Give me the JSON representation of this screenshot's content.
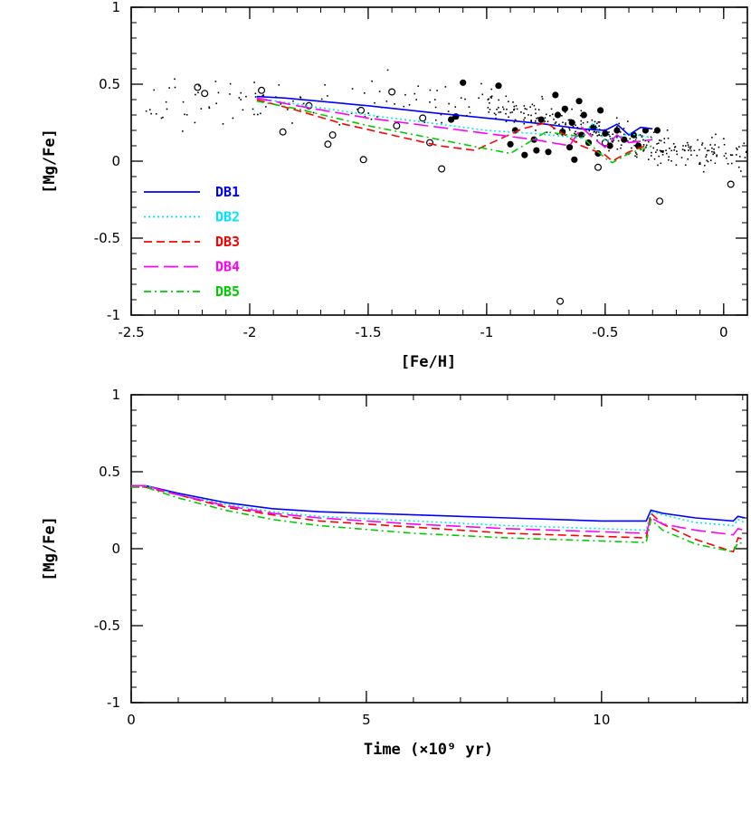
{
  "chart_data": [
    {
      "type": "scatter",
      "xlabel": "[Fe/H]",
      "ylabel": "[Mg/Fe]",
      "xlim": [
        -2.5,
        0.1
      ],
      "ylim": [
        -1,
        1
      ],
      "xticks": [
        {
          "value": -2.5,
          "label": "-2.5"
        },
        {
          "value": -2,
          "label": "-2"
        },
        {
          "value": -1.5,
          "label": "-1.5"
        },
        {
          "value": -1,
          "label": "-1"
        },
        {
          "value": -0.5,
          "label": "-0.5"
        },
        {
          "value": 0,
          "label": "0"
        }
      ],
      "yticks": [
        {
          "value": -1,
          "label": "-1"
        },
        {
          "value": -0.5,
          "label": "-0.5"
        },
        {
          "value": 0,
          "label": "0"
        },
        {
          "value": 0.5,
          "label": "0.5"
        },
        {
          "value": 1,
          "label": "1"
        }
      ],
      "legend": {
        "placement": "lower-left"
      },
      "series": [
        {
          "name": "DB1",
          "color": "#0000ff",
          "dash": "solid",
          "x": [
            -1.97,
            -1.85,
            -1.5,
            -1.2,
            -1.0,
            -0.75,
            -0.6,
            -0.5,
            -0.45,
            -0.4,
            -0.35,
            -0.3
          ],
          "y": [
            0.42,
            0.41,
            0.36,
            0.31,
            0.28,
            0.24,
            0.21,
            0.2,
            0.24,
            0.17,
            0.22,
            0.21
          ]
        },
        {
          "name": "DB2",
          "color": "#00e5ff",
          "dash": "dotted",
          "x": [
            -1.97,
            -1.8,
            -1.5,
            -1.2,
            -1.0,
            -0.8,
            -0.6,
            -0.55,
            -0.5,
            -0.45,
            -0.4,
            -0.3
          ],
          "y": [
            0.41,
            0.37,
            0.3,
            0.24,
            0.2,
            0.18,
            0.15,
            0.25,
            0.13,
            0.15,
            0.18,
            0.15
          ]
        },
        {
          "name": "DB3",
          "color": "#ff0000",
          "dash": "dashed",
          "x": [
            -1.97,
            -1.8,
            -1.6,
            -1.4,
            -1.2,
            -1.05,
            -0.85,
            -0.75,
            -0.7,
            -0.6,
            -0.5,
            -0.47,
            -0.4,
            -0.33
          ],
          "y": [
            0.4,
            0.33,
            0.24,
            0.17,
            0.1,
            0.07,
            0.21,
            0.25,
            0.2,
            0.1,
            0.04,
            0.0,
            0.06,
            0.1
          ]
        },
        {
          "name": "DB4",
          "color": "#ff00ff",
          "dash": "longdash",
          "x": [
            -1.97,
            -1.8,
            -1.5,
            -1.2,
            -1.0,
            -0.8,
            -0.65,
            -0.6,
            -0.55,
            -0.5,
            -0.45,
            -0.4,
            -0.3
          ],
          "y": [
            0.41,
            0.36,
            0.28,
            0.22,
            0.18,
            0.14,
            0.1,
            0.22,
            0.15,
            0.09,
            0.17,
            0.12,
            0.14
          ]
        },
        {
          "name": "DB5",
          "color": "#00cc00",
          "dash": "dashdot",
          "x": [
            -1.97,
            -1.8,
            -1.5,
            -1.2,
            -1.0,
            -0.9,
            -0.75,
            -0.6,
            -0.5,
            -0.47,
            -0.4,
            -0.3
          ],
          "y": [
            0.39,
            0.34,
            0.23,
            0.14,
            0.08,
            0.05,
            0.19,
            0.16,
            0.02,
            -0.01,
            0.05,
            0.1
          ]
        }
      ],
      "observations": {
        "open_circles": [
          {
            "x": -2.22,
            "y": 0.48
          },
          {
            "x": -2.19,
            "y": 0.44
          },
          {
            "x": -1.95,
            "y": 0.46
          },
          {
            "x": -1.86,
            "y": 0.19
          },
          {
            "x": -1.75,
            "y": 0.36
          },
          {
            "x": -1.65,
            "y": 0.17
          },
          {
            "x": -1.67,
            "y": 0.11
          },
          {
            "x": -1.53,
            "y": 0.33
          },
          {
            "x": -1.52,
            "y": 0.01
          },
          {
            "x": -1.4,
            "y": 0.45
          },
          {
            "x": -1.27,
            "y": 0.28
          },
          {
            "x": -1.24,
            "y": 0.12
          },
          {
            "x": -1.19,
            "y": -0.05
          },
          {
            "x": -1.38,
            "y": 0.23
          },
          {
            "x": -0.69,
            "y": -0.91
          },
          {
            "x": -0.53,
            "y": -0.04
          },
          {
            "x": -0.5,
            "y": 0.12
          },
          {
            "x": -0.27,
            "y": -0.26
          },
          {
            "x": 0.03,
            "y": -0.15
          }
        ],
        "filled_circles": [
          {
            "x": -1.1,
            "y": 0.51
          },
          {
            "x": -0.95,
            "y": 0.49
          },
          {
            "x": -0.9,
            "y": 0.11
          },
          {
            "x": -0.88,
            "y": 0.2
          },
          {
            "x": -0.84,
            "y": 0.04
          },
          {
            "x": -0.8,
            "y": 0.14
          },
          {
            "x": -0.77,
            "y": 0.27
          },
          {
            "x": -0.74,
            "y": 0.06
          },
          {
            "x": -0.71,
            "y": 0.43
          },
          {
            "x": -0.7,
            "y": 0.3
          },
          {
            "x": -0.68,
            "y": 0.19
          },
          {
            "x": -0.67,
            "y": 0.34
          },
          {
            "x": -0.65,
            "y": 0.09
          },
          {
            "x": -0.64,
            "y": 0.25
          },
          {
            "x": -0.63,
            "y": 0.01
          },
          {
            "x": -0.61,
            "y": 0.39
          },
          {
            "x": -0.6,
            "y": 0.17
          },
          {
            "x": -0.59,
            "y": 0.3
          },
          {
            "x": -0.57,
            "y": 0.12
          },
          {
            "x": -0.55,
            "y": 0.22
          },
          {
            "x": -0.53,
            "y": 0.05
          },
          {
            "x": -0.52,
            "y": 0.33
          },
          {
            "x": -0.5,
            "y": 0.18
          },
          {
            "x": -0.48,
            "y": 0.1
          },
          {
            "x": -0.45,
            "y": 0.2
          },
          {
            "x": -0.42,
            "y": 0.14
          },
          {
            "x": -0.38,
            "y": 0.17
          },
          {
            "x": -0.36,
            "y": 0.1
          },
          {
            "x": -0.33,
            "y": 0.2
          },
          {
            "x": -0.28,
            "y": 0.2
          },
          {
            "x": -1.15,
            "y": 0.27
          },
          {
            "x": -1.13,
            "y": 0.29
          },
          {
            "x": -0.79,
            "y": 0.07
          }
        ],
        "small_points": 420
      }
    },
    {
      "type": "line",
      "xlabel": "Time (×10⁹ yr)",
      "ylabel": "[Mg/Fe]",
      "xlim": [
        0,
        13.1
      ],
      "ylim": [
        -1,
        1
      ],
      "xticks": [
        {
          "value": 0,
          "label": "0"
        },
        {
          "value": 5,
          "label": "5"
        },
        {
          "value": 10,
          "label": "10"
        }
      ],
      "yticks": [
        {
          "value": -1,
          "label": "-1"
        },
        {
          "value": -0.5,
          "label": "-0.5"
        },
        {
          "value": 0,
          "label": "0"
        },
        {
          "value": 0.5,
          "label": "0.5"
        },
        {
          "value": 1,
          "label": "1"
        }
      ],
      "series": [
        {
          "name": "DB1",
          "color": "#0000ff",
          "dash": "solid",
          "x": [
            0,
            0.3,
            1,
            2,
            3,
            4,
            6,
            8,
            10,
            10.95,
            11.05,
            11.3,
            12,
            12.8,
            12.9,
            13.05
          ],
          "y": [
            0.41,
            0.41,
            0.36,
            0.3,
            0.26,
            0.24,
            0.22,
            0.2,
            0.18,
            0.18,
            0.25,
            0.23,
            0.2,
            0.18,
            0.21,
            0.2
          ]
        },
        {
          "name": "DB2",
          "color": "#00e5ff",
          "dash": "dotted",
          "x": [
            0,
            0.3,
            1,
            2,
            3,
            4,
            6,
            8,
            10,
            10.95,
            11.05,
            11.3,
            12,
            12.8,
            12.9,
            13.05
          ],
          "y": [
            0.41,
            0.41,
            0.35,
            0.29,
            0.24,
            0.21,
            0.18,
            0.15,
            0.13,
            0.12,
            0.24,
            0.22,
            0.17,
            0.15,
            0.19,
            0.17
          ]
        },
        {
          "name": "DB3",
          "color": "#ff0000",
          "dash": "dashed",
          "x": [
            0,
            0.3,
            1,
            2,
            3,
            4,
            6,
            8,
            10,
            10.95,
            11.05,
            11.3,
            12,
            12.8,
            12.9,
            13.05
          ],
          "y": [
            0.4,
            0.4,
            0.35,
            0.27,
            0.22,
            0.18,
            0.14,
            0.1,
            0.08,
            0.07,
            0.23,
            0.16,
            0.06,
            -0.02,
            0.07,
            0.06
          ]
        },
        {
          "name": "DB4",
          "color": "#ff00ff",
          "dash": "longdash",
          "x": [
            0,
            0.3,
            1,
            2,
            3,
            4,
            6,
            8,
            10,
            10.95,
            11.05,
            11.3,
            12,
            12.8,
            12.9,
            13.05
          ],
          "y": [
            0.41,
            0.41,
            0.35,
            0.28,
            0.23,
            0.2,
            0.16,
            0.13,
            0.11,
            0.1,
            0.2,
            0.16,
            0.12,
            0.09,
            0.13,
            0.12
          ]
        },
        {
          "name": "DB5",
          "color": "#00cc00",
          "dash": "dashdot",
          "x": [
            0,
            0.3,
            1,
            2,
            3,
            4,
            6,
            8,
            10,
            10.95,
            11.05,
            11.3,
            12,
            12.8,
            12.9,
            13.05
          ],
          "y": [
            0.4,
            0.4,
            0.33,
            0.25,
            0.19,
            0.15,
            0.1,
            0.07,
            0.05,
            0.04,
            0.19,
            0.12,
            0.03,
            -0.02,
            0.04,
            0.03
          ]
        }
      ]
    }
  ]
}
